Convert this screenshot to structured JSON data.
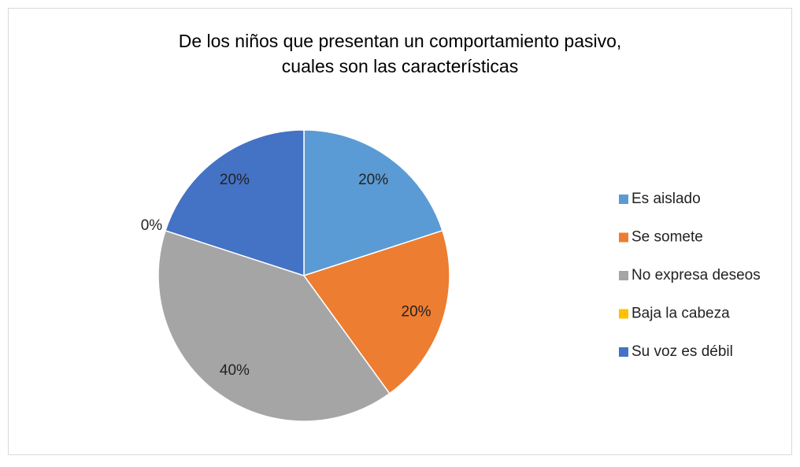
{
  "chart_data": {
    "type": "pie",
    "title": [
      "De los niños que presentan un comportamiento pasivo,",
      "cuales son las características"
    ],
    "categories": [
      "Es aislado",
      "Se somete",
      "No expresa deseos",
      "Baja la cabeza",
      "Su voz es débil"
    ],
    "values": [
      20,
      20,
      40,
      0,
      20
    ],
    "value_labels": [
      "20%",
      "20%",
      "40%",
      "0%",
      "20%"
    ],
    "colors": [
      "#5b9bd5",
      "#ed7d31",
      "#a5a5a5",
      "#ffc000",
      "#4472c4"
    ],
    "legend": "right"
  }
}
